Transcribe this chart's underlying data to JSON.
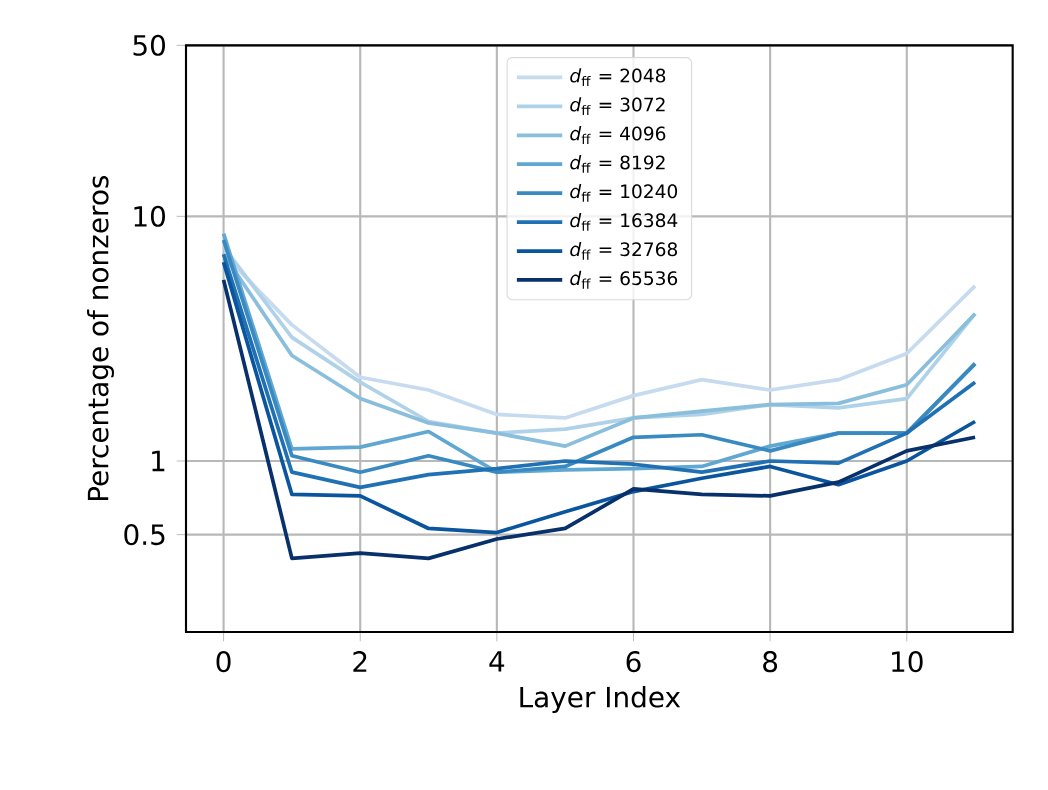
{
  "chart_data": {
    "type": "line",
    "xlabel": "Layer Index",
    "ylabel": "Percentage of nonzeros",
    "x": [
      0,
      1,
      2,
      3,
      4,
      5,
      6,
      7,
      8,
      9,
      10,
      11
    ],
    "series": [
      {
        "name": "*d*$_{ff}$ = 2048",
        "color": "#c6dbef",
        "values": [
          7.0,
          3.6,
          2.2,
          1.95,
          1.55,
          1.5,
          1.85,
          2.15,
          1.95,
          2.15,
          2.75,
          5.2
        ]
      },
      {
        "name": "*d*$_{ff}$ = 3072",
        "color": "#b0d2e8",
        "values": [
          7.5,
          3.2,
          2.1,
          1.45,
          1.3,
          1.35,
          1.5,
          1.55,
          1.7,
          1.65,
          1.8,
          4.0
        ]
      },
      {
        "name": "*d*$_{ff}$ = 4096",
        "color": "#89bedc",
        "values": [
          7.0,
          2.7,
          1.8,
          1.43,
          1.3,
          1.15,
          1.5,
          1.6,
          1.7,
          1.72,
          2.05,
          4.0
        ]
      },
      {
        "name": "*d*$_{ff}$ = 8192",
        "color": "#60a7d2",
        "values": [
          8.5,
          1.12,
          1.14,
          1.32,
          0.9,
          0.92,
          0.93,
          0.95,
          1.15,
          1.3,
          1.3,
          2.5
        ]
      },
      {
        "name": "*d*$_{ff}$ = 10240",
        "color": "#3a8ac2",
        "values": [
          8.0,
          1.05,
          0.9,
          1.05,
          0.9,
          0.95,
          1.25,
          1.28,
          1.1,
          1.3,
          1.3,
          2.5
        ]
      },
      {
        "name": "*d*$_{ff}$ = 16384",
        "color": "#2070b4",
        "values": [
          7.0,
          0.9,
          0.78,
          0.88,
          0.93,
          1.0,
          0.97,
          0.9,
          1.0,
          0.98,
          1.3,
          2.1
        ]
      },
      {
        "name": "*d*$_{ff}$ = 32768",
        "color": "#0b559f",
        "values": [
          6.5,
          0.73,
          0.72,
          0.53,
          0.51,
          0.62,
          0.75,
          0.85,
          0.95,
          0.8,
          1.0,
          1.45
        ]
      },
      {
        "name": "*d*$_{ff}$ = 65536",
        "color": "#08306b",
        "values": [
          5.5,
          0.4,
          0.42,
          0.4,
          0.48,
          0.53,
          0.77,
          0.73,
          0.72,
          0.82,
          1.1,
          1.25
        ]
      }
    ],
    "xlim": [
      -0.55,
      11.55
    ],
    "ylim": [
      0.2,
      50
    ],
    "xticks": [
      0,
      2,
      4,
      6,
      8,
      10
    ],
    "yticks": [
      0.5,
      1,
      10,
      50
    ],
    "log": "y",
    "grid": true,
    "legend": "top",
    "marker": "none",
    "line_style": "solid"
  }
}
